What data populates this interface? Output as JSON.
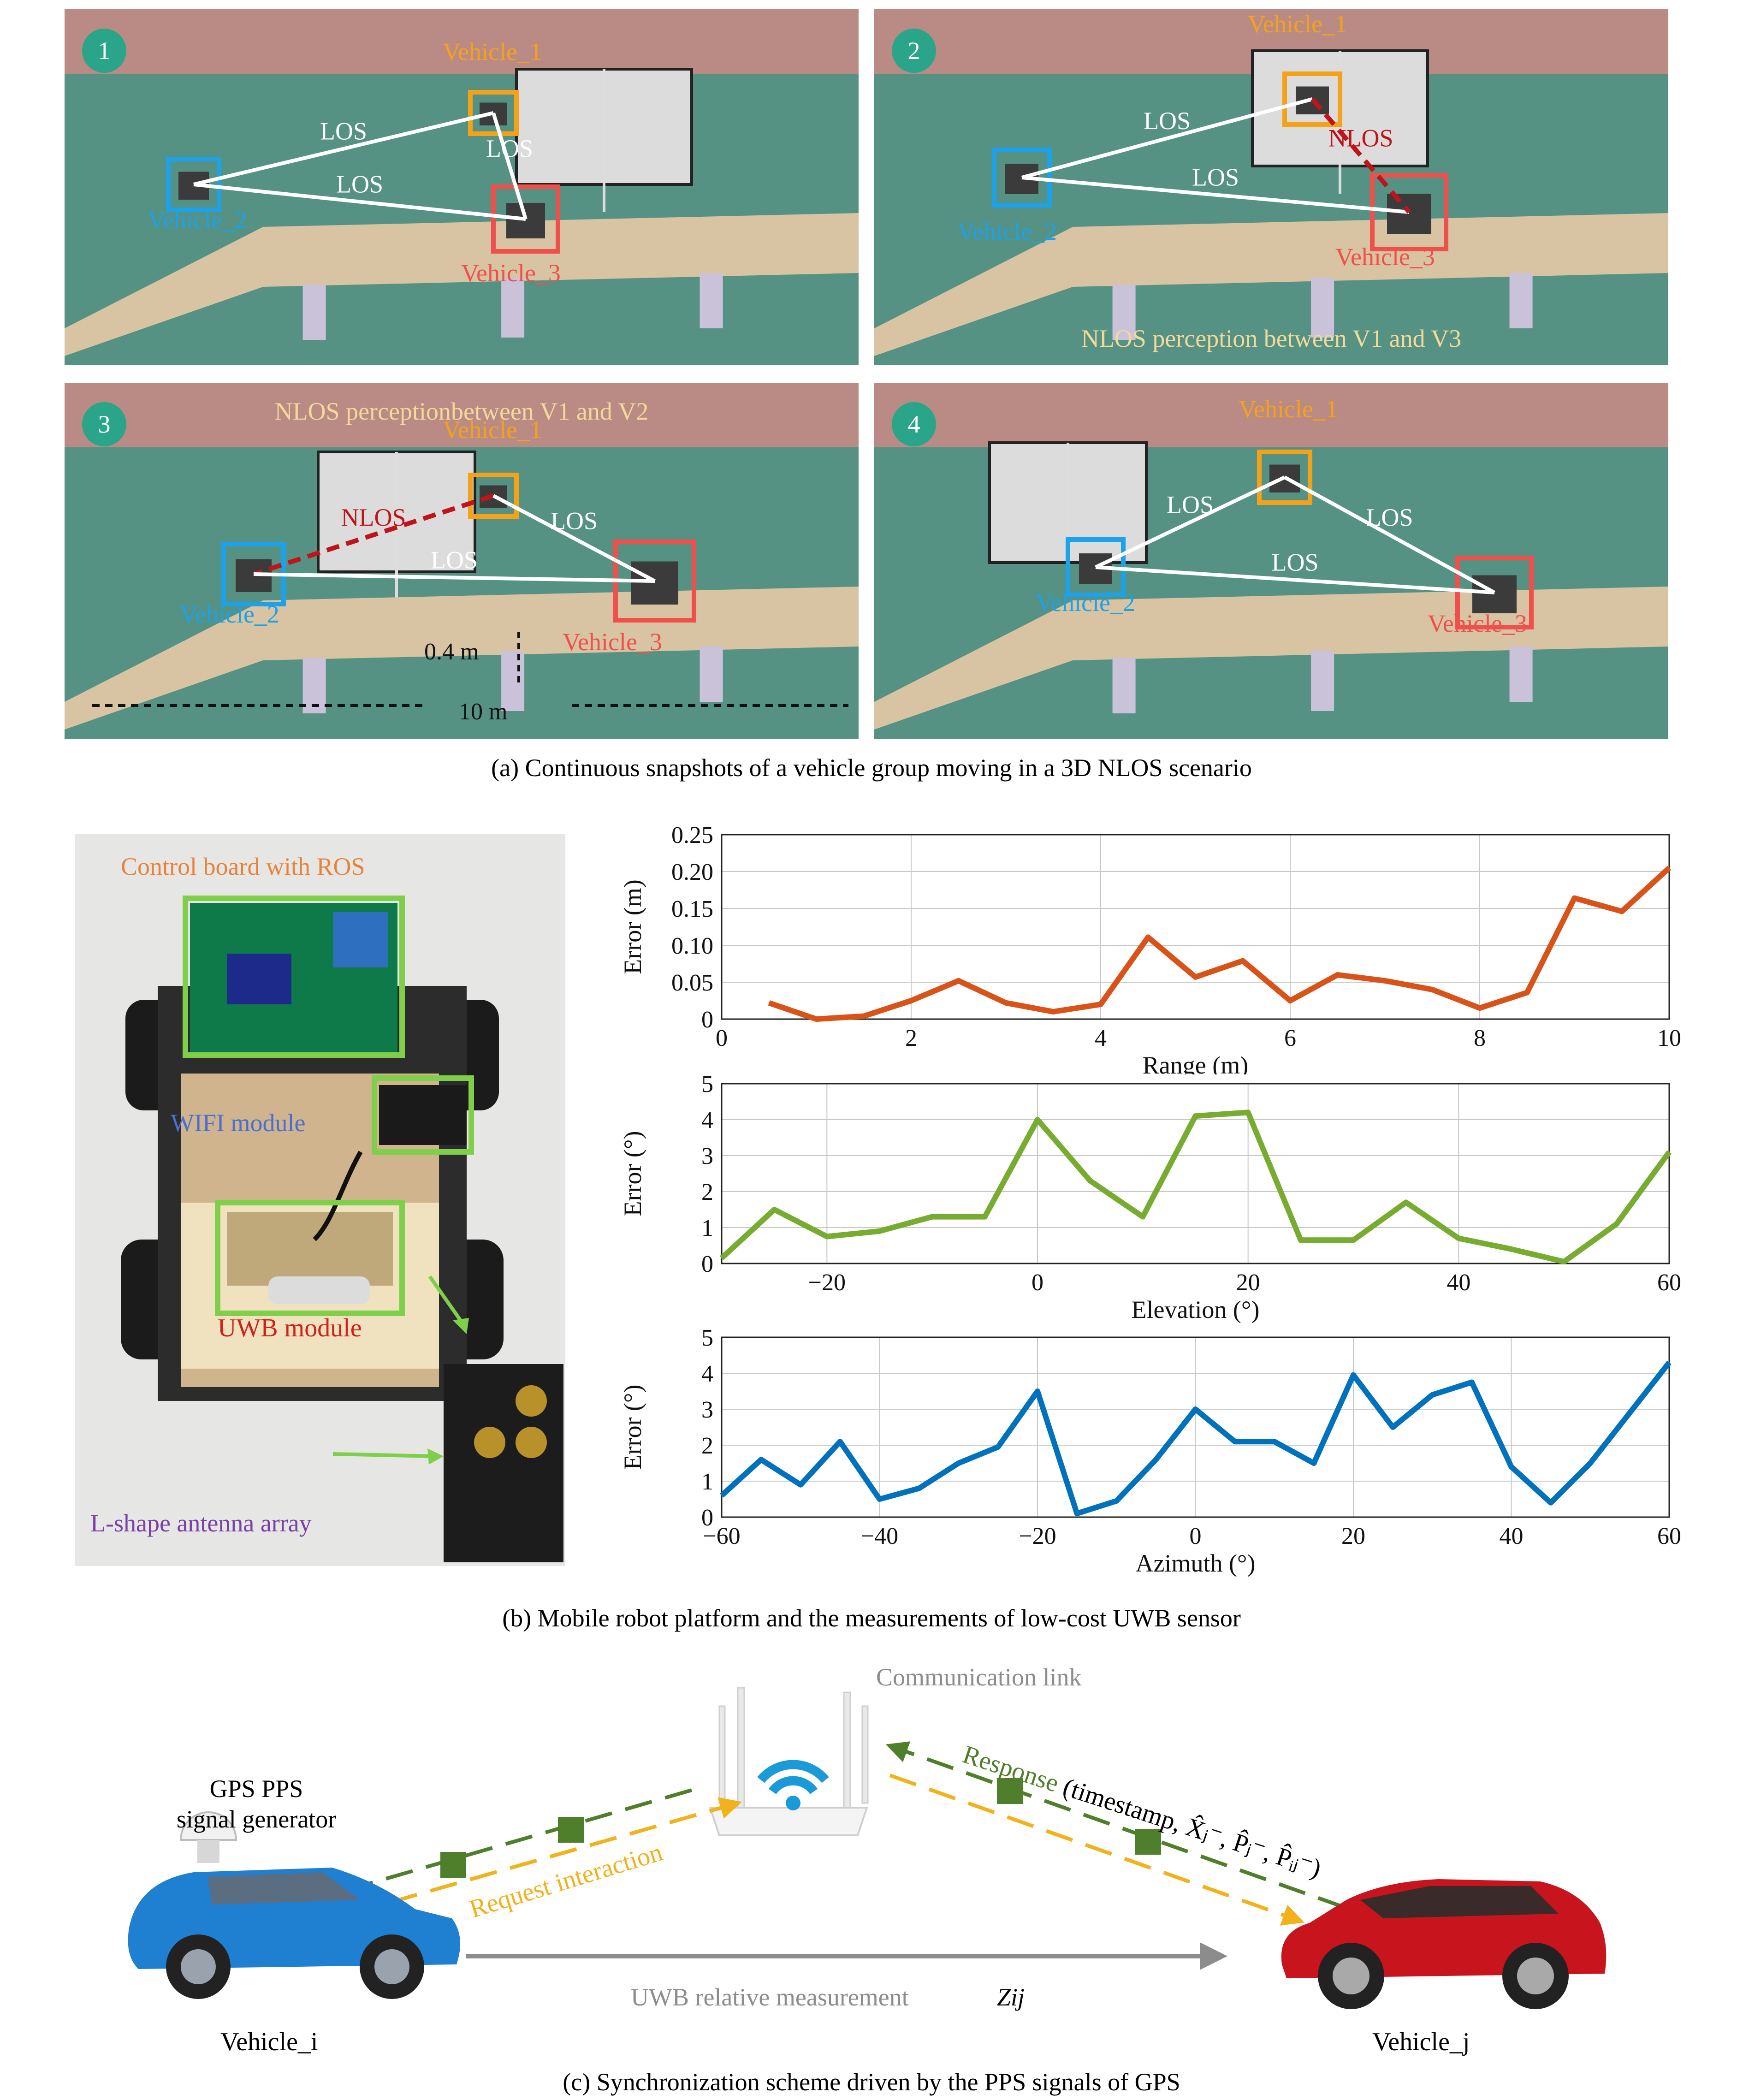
{
  "panel_a": {
    "caption": "(a)  Continuous snapshots of a vehicle group moving in a 3D NLOS scenario",
    "snapshots": [
      {
        "number": "1",
        "v1": "Vehicle_1",
        "v2": "Vehicle_2",
        "v3": "Vehicle_3",
        "links": [
          "LOS",
          "LOS",
          "LOS"
        ],
        "note": ""
      },
      {
        "number": "2",
        "v1": "Vehicle_1",
        "v2": "Vehicle_2",
        "v3": "Vehicle_3",
        "links": [
          "LOS",
          "LOS",
          "NLOS"
        ],
        "note": "NLOS perception between V1 and V3"
      },
      {
        "number": "3",
        "v1": "Vehicle_1",
        "v2": "Vehicle_2",
        "v3": "Vehicle_3",
        "links": [
          "NLOS",
          "LOS",
          "LOS"
        ],
        "note": "NLOS perceptionbetween V1 and V2",
        "height": "0.4 m",
        "length": "10 m"
      },
      {
        "number": "4",
        "v1": "Vehicle_1",
        "v2": "Vehicle_2",
        "v3": "Vehicle_3",
        "links": [
          "LOS",
          "LOS",
          "LOS"
        ],
        "note": ""
      }
    ],
    "colors": {
      "v1": "#f5a21b",
      "v2": "#1da1e8",
      "v3": "#f0504c",
      "nlos": "#c0141b",
      "badge": "#2aa58a",
      "note": "#f3d99a"
    }
  },
  "panel_b": {
    "caption": "(b) Mobile robot platform and the measurements of low-cost UWB sensor",
    "labels": {
      "control": "Control board with ROS",
      "wifi": "WIFI module",
      "uwb": "UWB module",
      "antenna": "L-shape antenna array"
    },
    "label_colors": {
      "control": "#e8823a",
      "wifi": "#4a6fd0",
      "uwb": "#d0201a",
      "antenna": "#7a3fa8",
      "box": "#7fcf4a"
    }
  },
  "chart_data": [
    {
      "type": "line",
      "xlabel": "Range (m)",
      "ylabel": "Error (m)",
      "xlim": [
        0,
        10
      ],
      "ylim": [
        0,
        0.25
      ],
      "xticks": [
        "0",
        "2",
        "4",
        "6",
        "8",
        "10"
      ],
      "yticks": [
        "0",
        "0.05",
        "0.10",
        "0.15",
        "0.20",
        "0.25"
      ],
      "grid": true,
      "color": "#d95319",
      "x": [
        0.5,
        1.0,
        1.5,
        2.0,
        2.5,
        3.0,
        3.5,
        4.0,
        4.5,
        5.0,
        5.5,
        6.0,
        6.5,
        7.0,
        7.5,
        8.0,
        8.5,
        9.0,
        9.5,
        10.0
      ],
      "y": [
        0.022,
        0.0,
        0.004,
        0.025,
        0.052,
        0.022,
        0.01,
        0.02,
        0.111,
        0.057,
        0.079,
        0.025,
        0.06,
        0.052,
        0.04,
        0.015,
        0.036,
        0.164,
        0.146,
        0.205
      ]
    },
    {
      "type": "line",
      "xlabel": "Elevation (°)",
      "ylabel": "Error (°)",
      "xlim": [
        -30,
        60
      ],
      "ylim": [
        0,
        5
      ],
      "xticks": [
        "−20",
        "0",
        "20",
        "40",
        "60"
      ],
      "yticks": [
        "0",
        "1",
        "2",
        "3",
        "4",
        "5"
      ],
      "grid": true,
      "color": "#77ac30",
      "x": [
        -30,
        -25,
        -20,
        -15,
        -10,
        -5,
        0,
        5,
        10,
        15,
        20,
        25,
        30,
        35,
        40,
        45,
        50,
        55,
        60
      ],
      "y": [
        0.15,
        1.5,
        0.75,
        0.9,
        1.3,
        1.3,
        4.0,
        2.3,
        1.3,
        4.1,
        4.2,
        0.65,
        0.65,
        1.7,
        0.7,
        0.4,
        0.05,
        1.1,
        3.1
      ]
    },
    {
      "type": "line",
      "xlabel": "Azimuth (°)",
      "ylabel": "Error (°)",
      "xlim": [
        -60,
        60
      ],
      "ylim": [
        0,
        5
      ],
      "xticks": [
        "−60",
        "−40",
        "−20",
        "0",
        "20",
        "40",
        "60"
      ],
      "yticks": [
        "0",
        "1",
        "2",
        "3",
        "4",
        "5"
      ],
      "grid": true,
      "color": "#0072bd",
      "x": [
        -60,
        -55,
        -50,
        -45,
        -40,
        -35,
        -30,
        -25,
        -20,
        -15,
        -10,
        -5,
        0,
        5,
        10,
        15,
        20,
        25,
        30,
        35,
        40,
        45,
        50,
        55,
        60
      ],
      "y": [
        0.6,
        1.6,
        0.9,
        2.1,
        0.5,
        0.8,
        1.5,
        1.95,
        3.5,
        0.1,
        0.45,
        1.6,
        3.0,
        2.1,
        2.1,
        1.5,
        3.95,
        2.5,
        3.4,
        3.75,
        1.4,
        0.4,
        1.5,
        2.9,
        4.3
      ]
    }
  ],
  "panel_c": {
    "caption": "(c) Synchronization scheme driven by the PPS signals of GPS",
    "gps_line1": "GPS PPS",
    "gps_line2": "signal generator",
    "comm": "Communication link",
    "response_word": "Response",
    "response_rest": " (timestamp, X̂ⱼ⁻, P̂ⱼ⁻, P̂ᵢⱼ⁻)",
    "request": "Request interaction",
    "uwb": "UWB relative measurement",
    "zij": "Zij",
    "vehicle_i": "Vehicle_i",
    "vehicle_j": "Vehicle_j",
    "colors": {
      "response": "#4f7f2a",
      "request": "#f2b21c",
      "gray": "#8c8c8c",
      "car_i": "#1f7fd0",
      "car_j": "#c8141c"
    }
  }
}
